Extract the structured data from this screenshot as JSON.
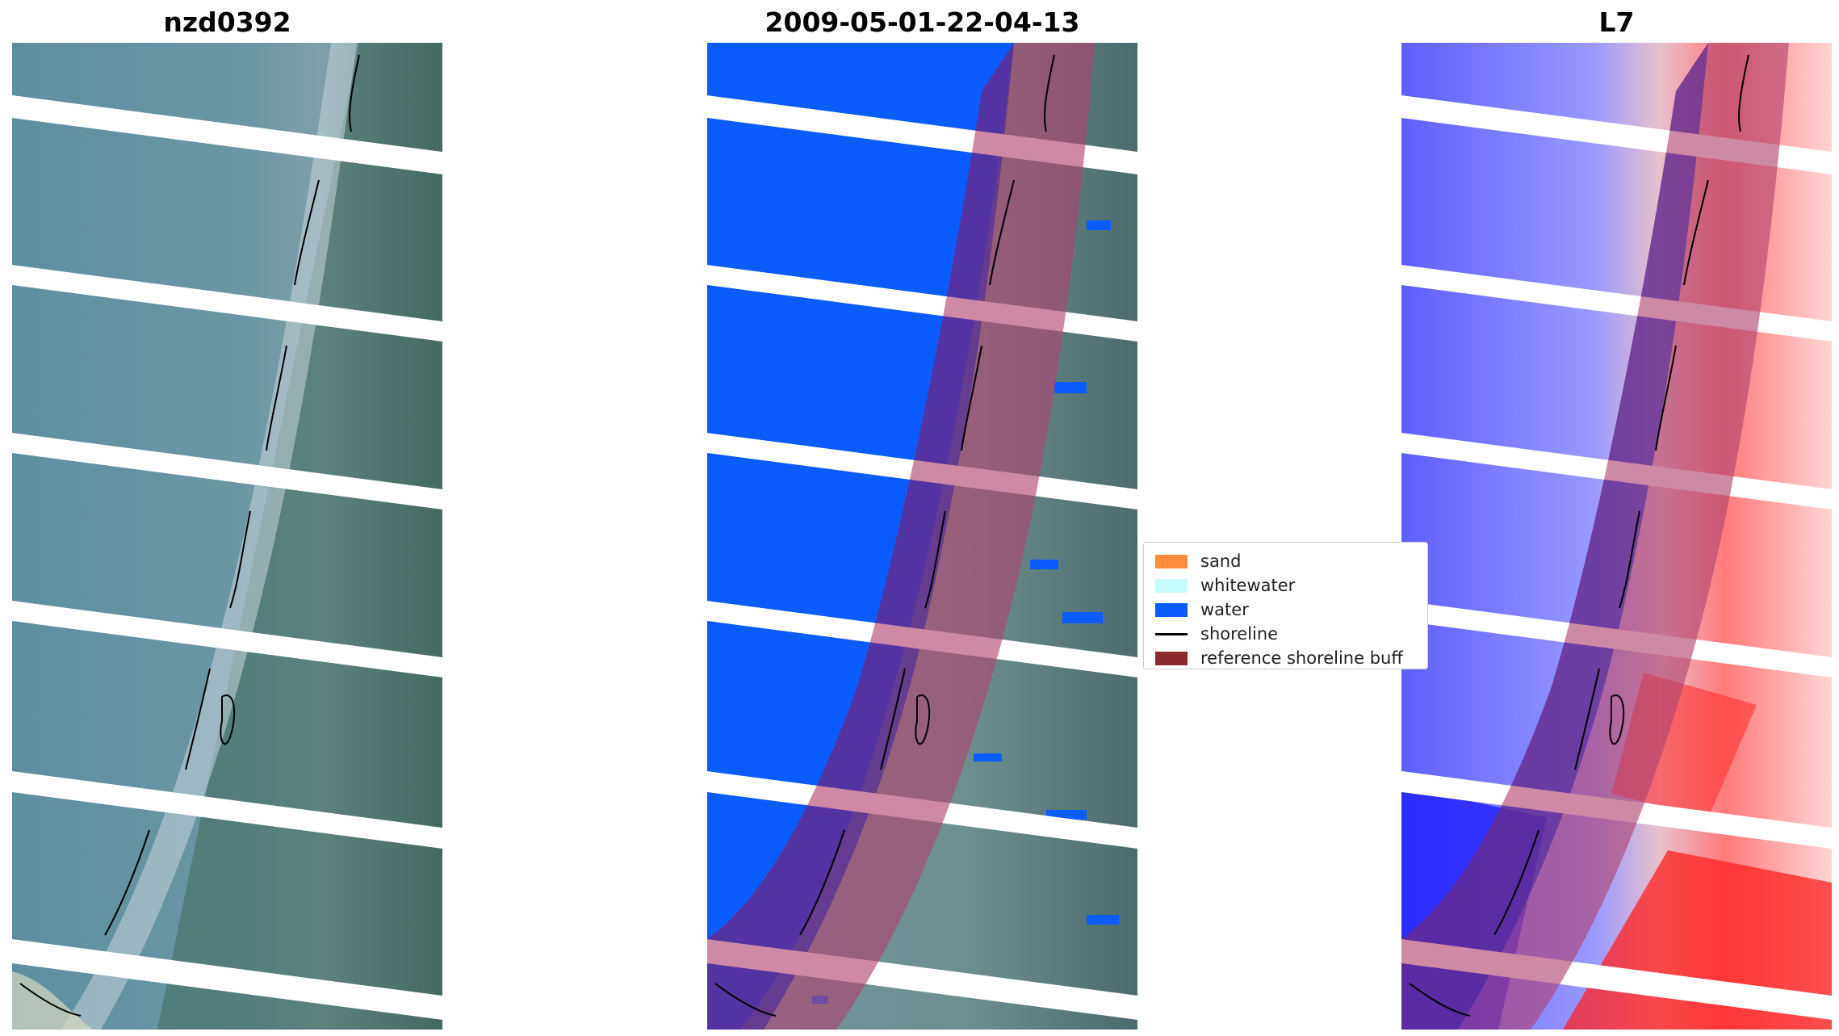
{
  "panels": [
    {
      "title": "nzd0392"
    },
    {
      "title": "2009-05-01-22-04-13"
    },
    {
      "title": "L7"
    }
  ],
  "legend": {
    "items": [
      {
        "label": "sand",
        "color": "#ff8c3a",
        "kind": "patch"
      },
      {
        "label": "whitewater",
        "color": "#c6fcfc",
        "kind": "patch"
      },
      {
        "label": "water",
        "color": "#0a5cff",
        "kind": "patch"
      },
      {
        "label": "shoreline",
        "color": "#000000",
        "kind": "line"
      },
      {
        "label": "reference shoreline buff",
        "color": "#8b2a2e",
        "kind": "patch"
      }
    ]
  },
  "colors": {
    "water_class": "#0a5cff",
    "buffer_overlay": "#b0426e",
    "shoreline": "#000000",
    "index_low": "#1414ff",
    "index_high": "#ff0000"
  }
}
